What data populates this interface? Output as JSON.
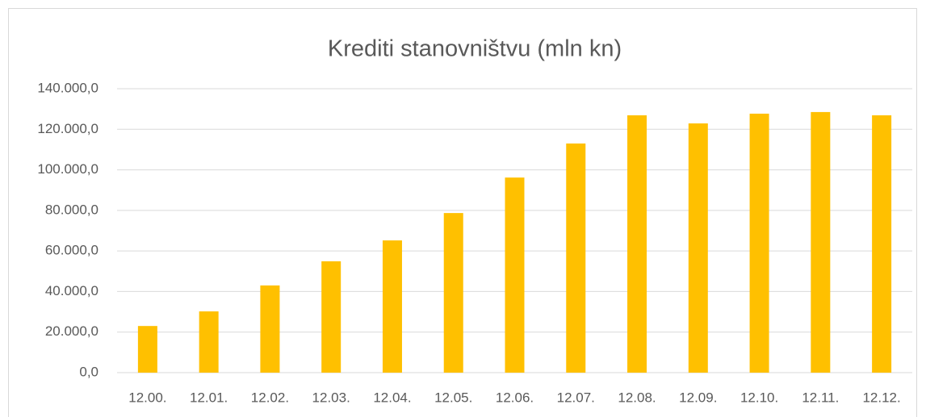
{
  "chart_data": {
    "type": "bar",
    "title": "Krediti stanovništvu (mln kn)",
    "categories": [
      "12.00.",
      "12.01.",
      "12.02.",
      "12.03.",
      "12.04.",
      "12.05.",
      "12.06.",
      "12.07.",
      "12.08.",
      "12.09.",
      "12.10.",
      "12.11.",
      "12.12."
    ],
    "values": [
      23000,
      30200,
      43000,
      54900,
      65200,
      78700,
      96200,
      113000,
      126900,
      122900,
      127700,
      128500,
      126900
    ],
    "color": "#ffc000",
    "ylim": [
      0,
      140000
    ],
    "yticks": [
      {
        "value": 0,
        "label": "0,0"
      },
      {
        "value": 20000,
        "label": "20.000,0"
      },
      {
        "value": 40000,
        "label": "40.000,0"
      },
      {
        "value": 60000,
        "label": "60.000,0"
      },
      {
        "value": 80000,
        "label": "80.000,0"
      },
      {
        "value": 100000,
        "label": "100.000,0"
      },
      {
        "value": 120000,
        "label": "120.000,0"
      },
      {
        "value": 140000,
        "label": "140.000,0"
      }
    ],
    "grid": true
  }
}
